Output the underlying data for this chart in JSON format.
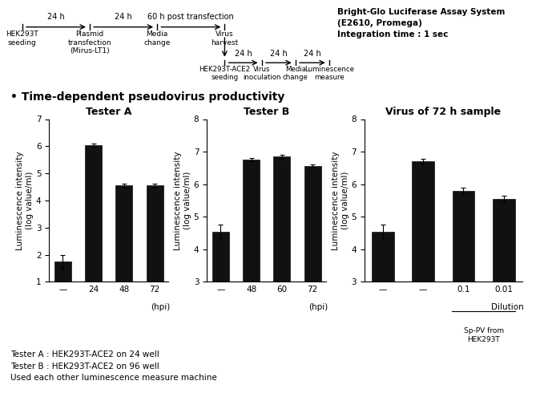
{
  "assay_note": "Bright-Glo Luciferase Assay System\n(E2610, Promega)\nIntegration time : 1 sec",
  "bullet_title": "• Time-dependent pseudovirus productivity",
  "plots": [
    {
      "title": "Tester A",
      "categories": [
        "—",
        "24",
        "48",
        "72"
      ],
      "values": [
        1.75,
        6.03,
        4.55,
        4.55
      ],
      "errors": [
        0.25,
        0.06,
        0.08,
        0.07
      ],
      "xlabel": "(hpi)",
      "ylabel": "Luminescence intensity\n(log value/ml)",
      "ylim": [
        1,
        7
      ],
      "yticks": [
        1,
        2,
        3,
        4,
        5,
        6,
        7
      ],
      "has_underline": false
    },
    {
      "title": "Tester B",
      "categories": [
        "—",
        "48",
        "60",
        "72"
      ],
      "values": [
        4.55,
        6.75,
        6.85,
        6.55
      ],
      "errors": [
        0.2,
        0.05,
        0.06,
        0.05
      ],
      "xlabel": "(hpi)",
      "ylabel": "Luminescence intensity\n(log value/ml)",
      "ylim": [
        3,
        8
      ],
      "yticks": [
        3,
        4,
        5,
        6,
        7,
        8
      ],
      "has_underline": false
    },
    {
      "title": "Virus of 72 h sample",
      "categories": [
        "—",
        "—",
        "0.1",
        "0.01"
      ],
      "values": [
        4.55,
        6.7,
        5.8,
        5.55
      ],
      "errors": [
        0.2,
        0.08,
        0.1,
        0.1
      ],
      "xlabel": "Dilution",
      "ylabel": "Luminescence intensity\n(log value/ml)",
      "ylim": [
        3,
        8
      ],
      "yticks": [
        3,
        4,
        5,
        6,
        7,
        8
      ],
      "has_underline": true,
      "underline_label": "Sp-PV from\nHEK293T"
    }
  ],
  "footnotes": [
    "Tester A : HEK293T-ACE2 on 24 well",
    "Tester B : HEK293T-ACE2 on 96 well",
    "Used each other luminescence measure machine"
  ],
  "bar_color": "#111111",
  "bar_width": 0.55,
  "bg_color": "#ffffff",
  "title_fontsize": 9,
  "tick_fontsize": 7.5,
  "label_fontsize": 7.5,
  "footnote_fontsize": 7.5
}
